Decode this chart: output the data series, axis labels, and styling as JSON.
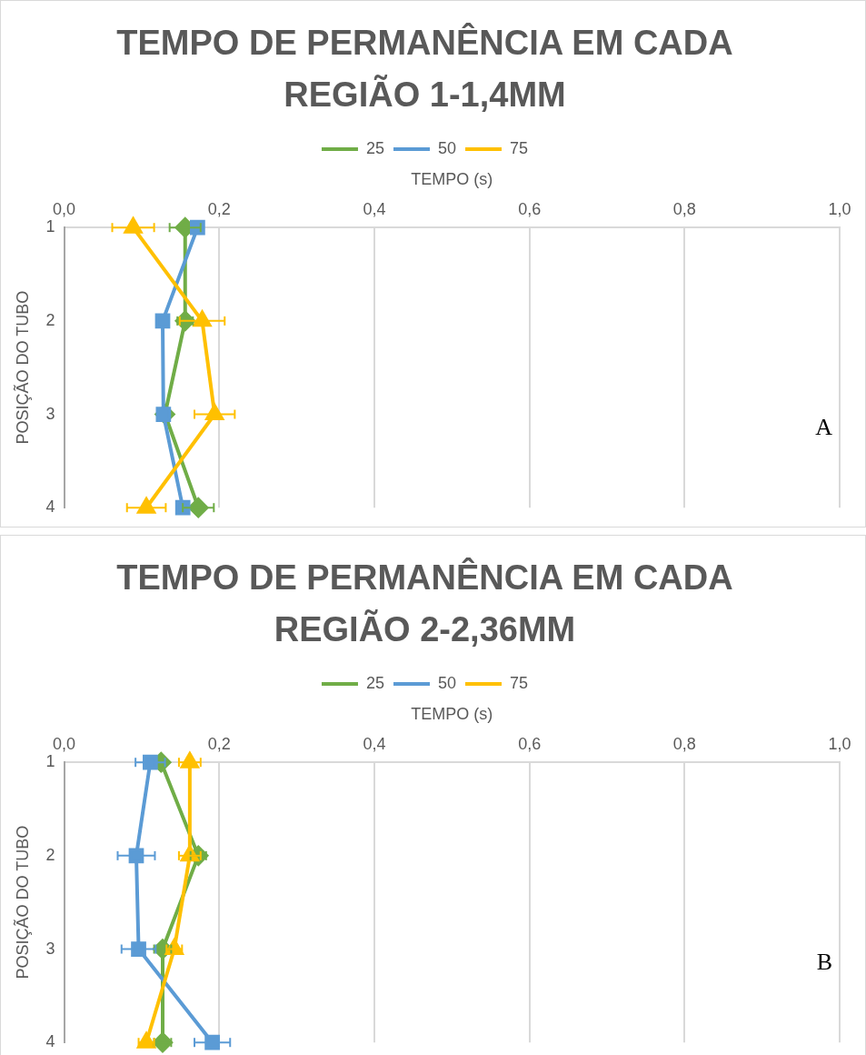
{
  "chart_data": [
    {
      "type": "line",
      "title": "TEMPO DE PERMANÊNCIA EM CADA REGIÃO 1-1,4MM",
      "xlabel": "TEMPO (s)",
      "ylabel": "POSIÇÃO DO TUBO",
      "categories": [
        "1",
        "2",
        "3",
        "4"
      ],
      "orientation": "horizontal",
      "xlim": [
        0,
        1
      ],
      "xticks": [
        {
          "value": 0,
          "label": "0,0"
        },
        {
          "value": 0.2,
          "label": "0,2"
        },
        {
          "value": 0.4,
          "label": "0,4"
        },
        {
          "value": 0.6,
          "label": "0,6"
        },
        {
          "value": 0.8,
          "label": "0,8"
        },
        {
          "value": 1,
          "label": "1,0"
        }
      ],
      "grid": "x",
      "legend": "top",
      "annotations": [
        "A"
      ],
      "series": [
        {
          "name": "25",
          "color": "#70ad47",
          "marker": "diamond",
          "values": [
            0.156,
            0.156,
            0.13,
            0.173
          ],
          "errors": [
            0.02,
            0.01,
            null,
            0.02
          ]
        },
        {
          "name": "50",
          "color": "#5b9bd5",
          "marker": "square",
          "values": [
            0.172,
            0.127,
            0.128,
            0.153
          ]
        },
        {
          "name": "75",
          "color": "#ffc000",
          "marker": "triangle",
          "values": [
            0.089,
            0.178,
            0.194,
            0.106
          ],
          "errors": [
            0.027,
            0.029,
            0.026,
            0.025
          ]
        }
      ]
    },
    {
      "type": "line",
      "title": "TEMPO DE PERMANÊNCIA EM CADA REGIÃO 2-2,36MM",
      "xlabel": "TEMPO (s)",
      "ylabel": "POSIÇÃO DO TUBO",
      "categories": [
        "1",
        "2",
        "3",
        "4"
      ],
      "orientation": "horizontal",
      "xlim": [
        0,
        1
      ],
      "xticks": [
        {
          "value": 0,
          "label": "0,0"
        },
        {
          "value": 0.2,
          "label": "0,2"
        },
        {
          "value": 0.4,
          "label": "0,4"
        },
        {
          "value": 0.6,
          "label": "0,6"
        },
        {
          "value": 0.8,
          "label": "0,8"
        },
        {
          "value": 1,
          "label": "1,0"
        }
      ],
      "grid": "x",
      "legend": "top",
      "annotations": [
        "B"
      ],
      "series": [
        {
          "name": "25",
          "color": "#70ad47",
          "marker": "diamond",
          "values": [
            0.125,
            0.173,
            0.127,
            0.127
          ],
          "errors": [
            null,
            0.01,
            0.011,
            0.011
          ]
        },
        {
          "name": "50",
          "color": "#5b9bd5",
          "marker": "square",
          "values": [
            0.111,
            0.093,
            0.096,
            0.191
          ],
          "errors": [
            0.019,
            0.024,
            0.022,
            0.023
          ]
        },
        {
          "name": "75",
          "color": "#ffc000",
          "marker": "triangle",
          "values": [
            0.162,
            0.162,
            0.142,
            0.106
          ],
          "errors": [
            0.014,
            0.014,
            0.01,
            0.01
          ]
        }
      ]
    }
  ]
}
